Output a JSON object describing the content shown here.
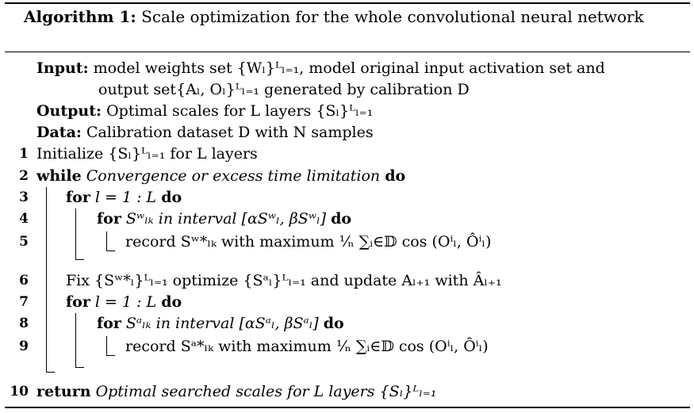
{
  "algorithm": {
    "label": "Algorithm 1:",
    "title": "Scale optimization for the whole convolutional neural network"
  },
  "header": {
    "input_label": "Input:",
    "input_line1": "model weights set {Wₗ}ᴸₗ₌₁, model original input activation set and",
    "input_line2": "output set{Aₗ, Oₗ}ᴸₗ₌₁ generated by calibration D",
    "output_label": "Output:",
    "output_text": "Optimal scales for L layers {Sₗ}ᴸₗ₌₁",
    "data_label": "Data:",
    "data_text": "Calibration dataset D with N samples"
  },
  "lines": [
    {
      "num": "1",
      "text": "Initialize {Sₗ}ᴸₗ₌₁ for L layers"
    },
    {
      "num": "2",
      "kw": "while",
      "cond": "Convergence or excess time limitation",
      "kw2": "do"
    },
    {
      "num": "3",
      "kw": "for",
      "text": "l = 1 : L",
      "kw2": "do"
    },
    {
      "num": "4",
      "kw": "for",
      "cond": "Sʷₗₖ in interval [αSʷₗ, βSʷₗ]",
      "kw2": "do"
    },
    {
      "num": "5",
      "text": "record Sʷ*ₗₖ with maximum ¹⁄ₙ ∑ᵢ∈𝔻 cos (Oⁱₗ, Ôⁱₗ)"
    },
    {
      "num": "6",
      "text": "Fix {Sʷ*ₗ}ᴸₗ₌₁ optimize {Sᵃₗ}ᴸₗ₌₁ and update Aₗ₊₁ with Âₗ₊₁"
    },
    {
      "num": "7",
      "kw": "for",
      "text": "l = 1 : L",
      "kw2": "do"
    },
    {
      "num": "8",
      "kw": "for",
      "cond": "Sᵃₗₖ in interval [αSᵃₗ, βSᵃₗ]",
      "kw2": "do"
    },
    {
      "num": "9",
      "text": "record Sᵃ*ₗₖ with maximum ¹⁄ₙ ∑ᵢ∈𝔻 cos (Oⁱₗ, Ôⁱₗ)"
    },
    {
      "num": "10",
      "kw": "return",
      "cond": "Optimal searched scales for L layers {Sₗ}ᴸₗ₌₁"
    }
  ]
}
